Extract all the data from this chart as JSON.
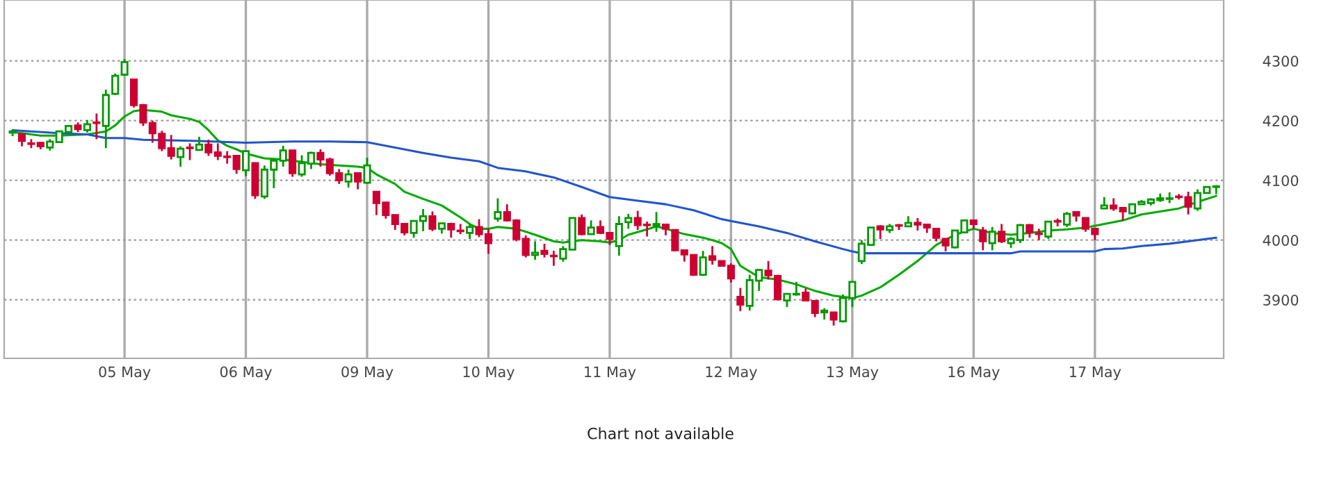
{
  "chart_data": {
    "type": "candlestick",
    "categories": [
      null,
      null,
      null,
      null,
      null,
      null,
      null,
      null,
      null,
      null,
      null,
      null,
      "05 May",
      null,
      null,
      null,
      null,
      null,
      null,
      null,
      null,
      null,
      null,
      null,
      null,
      "06 May",
      null,
      null,
      null,
      null,
      null,
      null,
      null,
      null,
      null,
      null,
      null,
      null,
      "09 May",
      null,
      null,
      null,
      null,
      null,
      null,
      null,
      null,
      null,
      null,
      null,
      null,
      "10 May",
      null,
      null,
      null,
      null,
      null,
      null,
      null,
      null,
      null,
      null,
      null,
      null,
      "11 May",
      null,
      null,
      null,
      null,
      null,
      null,
      null,
      null,
      null,
      null,
      null,
      null,
      "12 May",
      null,
      null,
      null,
      null,
      null,
      null,
      null,
      null,
      null,
      null,
      null,
      null,
      "13 May",
      null,
      null,
      null,
      null,
      null,
      null,
      null,
      null,
      null,
      null,
      null,
      null,
      "16 May",
      null,
      null,
      null,
      null,
      null,
      null,
      null,
      null,
      null,
      null,
      null,
      null,
      "17 May",
      null,
      null,
      null,
      null,
      null,
      null,
      null,
      null,
      null,
      null,
      null,
      null,
      null
    ],
    "ohlc": [
      [
        4180,
        4183,
        4174,
        4182
      ],
      [
        4177,
        4178,
        4157,
        4166
      ],
      [
        4162,
        4169,
        4154,
        4161
      ],
      [
        4163,
        4164,
        4152,
        4157
      ],
      [
        4155,
        4169,
        4150,
        4165
      ],
      [
        4164,
        4182,
        4164,
        4182
      ],
      [
        4181,
        4191,
        4179,
        4191
      ],
      [
        4192,
        4197,
        4181,
        4186
      ],
      [
        4184,
        4201,
        4180,
        4194
      ],
      [
        4197,
        4212,
        4169,
        4196
      ],
      [
        4191,
        4252,
        4154,
        4243
      ],
      [
        4245,
        4279,
        4243,
        4275
      ],
      [
        4277,
        4303,
        4275,
        4298
      ],
      [
        4269,
        4269,
        4222,
        4226
      ],
      [
        4226,
        4228,
        4191,
        4197
      ],
      [
        4196,
        4200,
        4163,
        4179
      ],
      [
        4178,
        4183,
        4149,
        4154
      ],
      [
        4154,
        4176,
        4135,
        4141
      ],
      [
        4139,
        4157,
        4123,
        4153
      ],
      [
        4155,
        4162,
        4134,
        4154
      ],
      [
        4151,
        4173,
        4151,
        4160
      ],
      [
        4160,
        4168,
        4141,
        4147
      ],
      [
        4147,
        4162,
        4134,
        4141
      ],
      [
        4140,
        4149,
        4128,
        4139
      ],
      [
        4141,
        4141,
        4111,
        4119
      ],
      [
        4117,
        4149,
        4107,
        4149
      ],
      [
        4129,
        4129,
        4069,
        4075
      ],
      [
        4073,
        4125,
        4069,
        4118
      ],
      [
        4118,
        4137,
        4087,
        4133
      ],
      [
        4133,
        4158,
        4123,
        4150
      ],
      [
        4150,
        4150,
        4106,
        4112
      ],
      [
        4110,
        4142,
        4106,
        4129
      ],
      [
        4128,
        4148,
        4119,
        4146
      ],
      [
        4146,
        4152,
        4123,
        4135
      ],
      [
        4135,
        4138,
        4108,
        4112
      ],
      [
        4112,
        4119,
        4094,
        4100
      ],
      [
        4098,
        4118,
        4088,
        4110
      ],
      [
        4112,
        4112,
        4085,
        4098
      ],
      [
        4096,
        4138,
        4094,
        4125
      ],
      [
        4081,
        4081,
        4042,
        4062
      ],
      [
        4063,
        4063,
        4036,
        4042
      ],
      [
        4042,
        4042,
        4017,
        4027
      ],
      [
        4027,
        4028,
        4008,
        4013
      ],
      [
        4012,
        4032,
        4004,
        4032
      ],
      [
        4032,
        4052,
        4015,
        4040
      ],
      [
        4040,
        4048,
        4015,
        4019
      ],
      [
        4019,
        4028,
        4011,
        4028
      ],
      [
        4027,
        4029,
        4004,
        4018
      ],
      [
        4016,
        4027,
        4010,
        4015
      ],
      [
        4012,
        4027,
        4002,
        4022
      ],
      [
        4022,
        4035,
        4005,
        4010
      ],
      [
        4010,
        4019,
        3977,
        3995
      ],
      [
        4036,
        4070,
        4031,
        4047
      ],
      [
        4047,
        4060,
        4031,
        4033
      ],
      [
        4033,
        4035,
        3998,
        4002
      ],
      [
        4002,
        4008,
        3971,
        3975
      ],
      [
        3975,
        3998,
        3967,
        3979
      ],
      [
        3982,
        3994,
        3971,
        3977
      ],
      [
        3974,
        3982,
        3957,
        3973
      ],
      [
        3969,
        3990,
        3964,
        3985
      ],
      [
        3984,
        4037,
        3984,
        4037
      ],
      [
        4037,
        4043,
        4008,
        4010
      ],
      [
        4010,
        4033,
        4010,
        4021
      ],
      [
        4022,
        4033,
        4010,
        4012
      ],
      [
        4012,
        4012,
        3992,
        4002
      ],
      [
        3990,
        4040,
        3974,
        4027
      ],
      [
        4030,
        4044,
        4019,
        4037
      ],
      [
        4037,
        4049,
        4017,
        4025
      ],
      [
        4026,
        4031,
        4006,
        4025
      ],
      [
        4024,
        4047,
        4014,
        4027
      ],
      [
        4026,
        4026,
        4008,
        4019
      ],
      [
        4017,
        4017,
        3981,
        3983
      ],
      [
        3983,
        3983,
        3964,
        3976
      ],
      [
        3975,
        3975,
        3940,
        3942
      ],
      [
        3942,
        3982,
        3940,
        3971
      ],
      [
        3973,
        3990,
        3959,
        3967
      ],
      [
        3965,
        3965,
        3957,
        3957
      ],
      [
        3957,
        3961,
        3929,
        3936
      ],
      [
        3905,
        3920,
        3881,
        3892
      ],
      [
        3890,
        3942,
        3882,
        3933
      ],
      [
        3932,
        3950,
        3915,
        3950
      ],
      [
        3949,
        3965,
        3934,
        3941
      ],
      [
        3940,
        3942,
        3899,
        3901
      ],
      [
        3899,
        3910,
        3888,
        3910
      ],
      [
        3909,
        3930,
        3907,
        3910
      ],
      [
        3912,
        3919,
        3899,
        3899
      ],
      [
        3898,
        3898,
        3871,
        3878
      ],
      [
        3879,
        3886,
        3867,
        3882
      ],
      [
        3879,
        3879,
        3857,
        3867
      ],
      [
        3864,
        3909,
        3862,
        3903
      ],
      [
        3903,
        3930,
        3888,
        3930
      ],
      [
        3965,
        4000,
        3960,
        3994
      ],
      [
        3992,
        4021,
        3991,
        4021
      ],
      [
        4023,
        4025,
        4002,
        4018
      ],
      [
        4017,
        4027,
        4012,
        4023
      ],
      [
        4025,
        4027,
        4017,
        4024
      ],
      [
        4023,
        4040,
        4022,
        4029
      ],
      [
        4029,
        4037,
        4016,
        4026
      ],
      [
        4026,
        4027,
        4012,
        4021
      ],
      [
        4019,
        4019,
        3998,
        4004
      ],
      [
        4002,
        4002,
        3981,
        3991
      ],
      [
        3988,
        4016,
        3986,
        4016
      ],
      [
        4013,
        4033,
        4012,
        4033
      ],
      [
        4033,
        4033,
        4019,
        4027
      ],
      [
        4016,
        4022,
        3983,
        3998
      ],
      [
        3995,
        4022,
        3983,
        4014
      ],
      [
        4014,
        4027,
        3995,
        3998
      ],
      [
        3995,
        4005,
        3987,
        4002
      ],
      [
        4000,
        4027,
        3995,
        4025
      ],
      [
        4025,
        4027,
        4004,
        4013
      ],
      [
        4011,
        4019,
        4000,
        4010
      ],
      [
        4006,
        4031,
        4002,
        4031
      ],
      [
        4032,
        4036,
        4023,
        4031
      ],
      [
        4026,
        4047,
        4022,
        4044
      ],
      [
        4047,
        4048,
        4031,
        4041
      ],
      [
        4037,
        4037,
        4014,
        4019
      ],
      [
        4019,
        4019,
        4000,
        4010
      ],
      [
        4053,
        4072,
        4053,
        4058
      ],
      [
        4058,
        4070,
        4049,
        4053
      ],
      [
        4054,
        4054,
        4033,
        4048
      ],
      [
        4045,
        4060,
        4043,
        4060
      ],
      [
        4060,
        4067,
        4060,
        4064
      ],
      [
        4062,
        4070,
        4058,
        4068
      ],
      [
        4067,
        4078,
        4064,
        4070
      ],
      [
        4069,
        4080,
        4062,
        4070
      ],
      [
        4073,
        4077,
        4068,
        4072
      ],
      [
        4072,
        4081,
        4043,
        4056
      ],
      [
        4053,
        4085,
        4049,
        4079
      ],
      [
        4079,
        4089,
        4079,
        4089
      ],
      [
        4089,
        4092,
        4077,
        4090
      ]
    ],
    "colors": [
      "#009900",
      "#cc0033",
      "#cc0033",
      "#cc0033",
      "#009900",
      "#009900",
      "#009900",
      "#cc0033",
      "#009900",
      "#cc0033",
      "#009900",
      "#009900",
      "#009900",
      "#cc0033",
      "#cc0033",
      "#cc0033",
      "#cc0033",
      "#cc0033",
      "#009900",
      "#cc0033",
      "#009900",
      "#cc0033",
      "#cc0033",
      "#cc0033",
      "#cc0033",
      "#009900",
      "#cc0033",
      "#009900",
      "#009900",
      "#009900",
      "#cc0033",
      "#009900",
      "#009900",
      "#cc0033",
      "#cc0033",
      "#cc0033",
      "#009900",
      "#cc0033",
      "#009900",
      "#cc0033",
      "#cc0033",
      "#cc0033",
      "#cc0033",
      "#009900",
      "#009900",
      "#cc0033",
      "#009900",
      "#cc0033",
      "#cc0033",
      "#009900",
      "#cc0033",
      "#cc0033",
      "#009900",
      "#cc0033",
      "#cc0033",
      "#cc0033",
      "#009900",
      "#cc0033",
      "#cc0033",
      "#009900",
      "#009900",
      "#cc0033",
      "#009900",
      "#cc0033",
      "#cc0033",
      "#009900",
      "#009900",
      "#cc0033",
      "#cc0033",
      "#009900",
      "#cc0033",
      "#cc0033",
      "#cc0033",
      "#cc0033",
      "#009900",
      "#cc0033",
      "#cc0033",
      "#cc0033",
      "#cc0033",
      "#009900",
      "#009900",
      "#cc0033",
      "#cc0033",
      "#009900",
      "#009900",
      "#cc0033",
      "#cc0033",
      "#009900",
      "#cc0033",
      "#009900",
      "#009900",
      "#009900",
      "#009900",
      "#cc0033",
      "#009900",
      "#cc0033",
      "#009900",
      "#cc0033",
      "#cc0033",
      "#cc0033",
      "#cc0033",
      "#009900",
      "#009900",
      "#cc0033",
      "#cc0033",
      "#009900",
      "#cc0033",
      "#009900",
      "#009900",
      "#cc0033",
      "#cc0033",
      "#009900",
      "#cc0033",
      "#009900",
      "#cc0033",
      "#cc0033",
      "#cc0033",
      "#009900",
      "#cc0033",
      "#cc0033",
      "#009900",
      "#009900",
      "#009900",
      "#009900",
      "#009900",
      "#cc0033",
      "#cc0033",
      "#009900",
      "#009900",
      "#009900"
    ],
    "series": [
      {
        "type": "line",
        "color": "#00aa00",
        "values": [
          4181,
          null,
          null,
          4175,
          null,
          4175,
          null,
          null,
          4177,
          null,
          4182,
          4192,
          4207,
          4216,
          4218,
          null,
          4215,
          4209,
          null,
          4203,
          4198,
          4184,
          4167,
          4158,
          4152,
          4145,
          null,
          4137,
          null,
          4135,
          null,
          4131,
          null,
          4127,
          null,
          4125,
          null,
          4123,
          4121,
          4110,
          null,
          4094,
          4081,
          null,
          4069,
          null,
          4058,
          null,
          4038,
          4027,
          4019,
          4019,
          4022,
          null,
          4019,
          null,
          4009,
          null,
          3998,
          3996,
          null,
          4000,
          null,
          3998,
          3996,
          4000,
          4009,
          null,
          4018,
          4023,
          4019,
          null,
          4010,
          null,
          4004,
          4000,
          3995,
          3985,
          3957,
          null,
          3938,
          null,
          3934,
          null,
          3926,
          null,
          3915,
          null,
          3907,
          null,
          3903,
          3907,
          null,
          3921,
          null,
          3942,
          null,
          3965,
          null,
          3992,
          null,
          4009,
          null,
          4019,
          null,
          4012,
          null,
          4009,
          null,
          4012,
          null,
          4016,
          null,
          4018,
          null,
          4021,
          null,
          4027,
          null,
          4033,
          null,
          4043,
          null,
          4048,
          null,
          4053,
          null,
          4064,
          null,
          4074
        ]
      },
      {
        "type": "line",
        "color": "#2255cc",
        "values": [
          4184,
          null,
          4182,
          null,
          null,
          4179,
          null,
          null,
          4177,
          null,
          4171,
          null,
          4171,
          null,
          4168,
          null,
          null,
          4167,
          null,
          null,
          4166,
          null,
          null,
          null,
          null,
          4163,
          null,
          null,
          null,
          null,
          4165,
          null,
          null,
          null,
          4165,
          null,
          null,
          null,
          4164,
          null,
          null,
          4155,
          null,
          null,
          4146,
          null,
          null,
          4138,
          null,
          null,
          4132,
          null,
          4121,
          null,
          null,
          4115,
          null,
          null,
          4105,
          null,
          null,
          4089,
          null,
          null,
          4072,
          null,
          null,
          4066,
          null,
          null,
          4060,
          null,
          null,
          4050,
          null,
          null,
          4035,
          4032,
          null,
          null,
          4023,
          null,
          null,
          4012,
          null,
          null,
          3998,
          null,
          null,
          3985,
          3981,
          3978,
          null,
          null,
          null,
          null,
          null,
          null,
          null,
          null,
          null,
          null,
          null,
          3978,
          null,
          null,
          null,
          3978,
          3981,
          null,
          null,
          null,
          null,
          null,
          null,
          null,
          3981,
          3985,
          null,
          3986,
          null,
          3990,
          null,
          null,
          3994,
          null,
          null,
          4000,
          null,
          4004
        ]
      }
    ],
    "ylim": [
      3802,
      4402
    ],
    "yticks": [
      3900,
      4000,
      4100,
      4200,
      4300
    ],
    "grid": true,
    "annotations": [
      "Chart not available"
    ]
  }
}
